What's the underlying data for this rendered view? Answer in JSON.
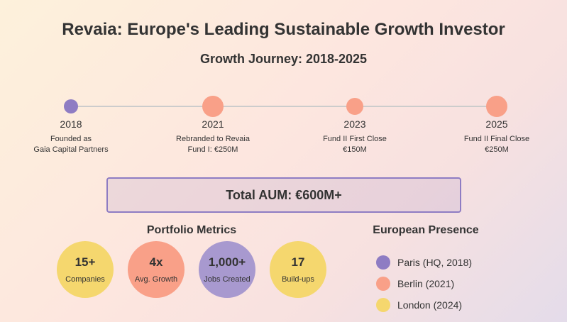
{
  "title": "Revaia: Europe's Leading Sustainable Growth Investor",
  "subtitle": "Growth Journey: 2018-2025",
  "colors": {
    "purple": "#8e7cc3",
    "coral": "#f9a088",
    "yellow": "#f5d76e"
  },
  "timeline": [
    {
      "year": "2018",
      "line1": "Founded as",
      "line2": "Gaia Capital Partners"
    },
    {
      "year": "2021",
      "line1": "Rebranded to Revaia",
      "line2": "Fund I: €250M"
    },
    {
      "year": "2023",
      "line1": "Fund II First Close",
      "line2": "€150M"
    },
    {
      "year": "2025",
      "line1": "Fund II Final Close",
      "line2": "€250M"
    }
  ],
  "aum": "Total AUM: €600M+",
  "metrics": {
    "heading": "Portfolio Metrics",
    "items": [
      {
        "value": "15+",
        "label": "Companies"
      },
      {
        "value": "4x",
        "label": "Avg. Growth"
      },
      {
        "value": "1,000+",
        "label": "Jobs Created"
      },
      {
        "value": "17",
        "label": "Build-ups"
      }
    ]
  },
  "presence": {
    "heading": "European Presence",
    "items": [
      {
        "label": "Paris (HQ, 2018)"
      },
      {
        "label": "Berlin (2021)"
      },
      {
        "label": "London (2024)"
      }
    ]
  }
}
